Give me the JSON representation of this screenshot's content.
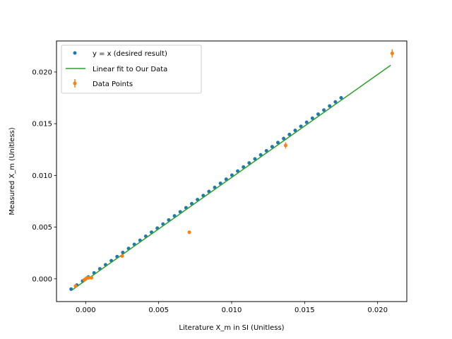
{
  "chart_data": {
    "type": "scatter",
    "title": "",
    "xlabel": "Literature X_m in SI (Unitless)",
    "ylabel": "Measured X_m (Unitless)",
    "xlim": [
      -0.002,
      0.022
    ],
    "ylim": [
      -0.0022,
      0.023
    ],
    "xticks": [
      0.0,
      0.005,
      0.01,
      0.015,
      0.02
    ],
    "yticks": [
      0.0,
      0.005,
      0.01,
      0.015,
      0.02
    ],
    "xtick_labels": [
      "0.000",
      "0.005",
      "0.010",
      "0.015",
      "0.020"
    ],
    "ytick_labels": [
      "0.000",
      "0.005",
      "0.010",
      "0.015",
      "0.020"
    ],
    "grid": false,
    "legend_position": "top-left",
    "legend": [
      "y = x (desired result)",
      "Linear fit to Our Data",
      "Data Points"
    ],
    "ideal_series": {
      "name": "y = x (desired result)",
      "color": "#1f77b4",
      "x_start": -0.001,
      "x_end": 0.0175,
      "count": 48
    },
    "fit_series": {
      "name": "Linear fit to Our Data",
      "color": "#2ca02c",
      "x": [
        -0.0009,
        0.0209
      ],
      "y": [
        -0.00105,
        0.02065
      ]
    },
    "data_series": {
      "name": "Data Points",
      "color": "#ff7f0e",
      "points": [
        {
          "x": -0.0007,
          "y": -0.0007,
          "err": 0.0001
        },
        {
          "x": -0.0001,
          "y": -0.0001,
          "err": 0.0001
        },
        {
          "x": 0.0,
          "y": 0.0,
          "err": 0.0001
        },
        {
          "x": 0.0001,
          "y": 0.0001,
          "err": 0.0001
        },
        {
          "x": 0.0002,
          "y": 0.0001,
          "err": 0.0001
        },
        {
          "x": 0.0004,
          "y": 0.0001,
          "err": 0.0001
        },
        {
          "x": 0.0025,
          "y": 0.0022,
          "err": 0.0001
        },
        {
          "x": 0.0071,
          "y": 0.0045,
          "err": 0.0001
        },
        {
          "x": 0.0137,
          "y": 0.0129,
          "err": 0.0003
        },
        {
          "x": 0.021,
          "y": 0.0218,
          "err": 0.0004
        }
      ]
    }
  }
}
